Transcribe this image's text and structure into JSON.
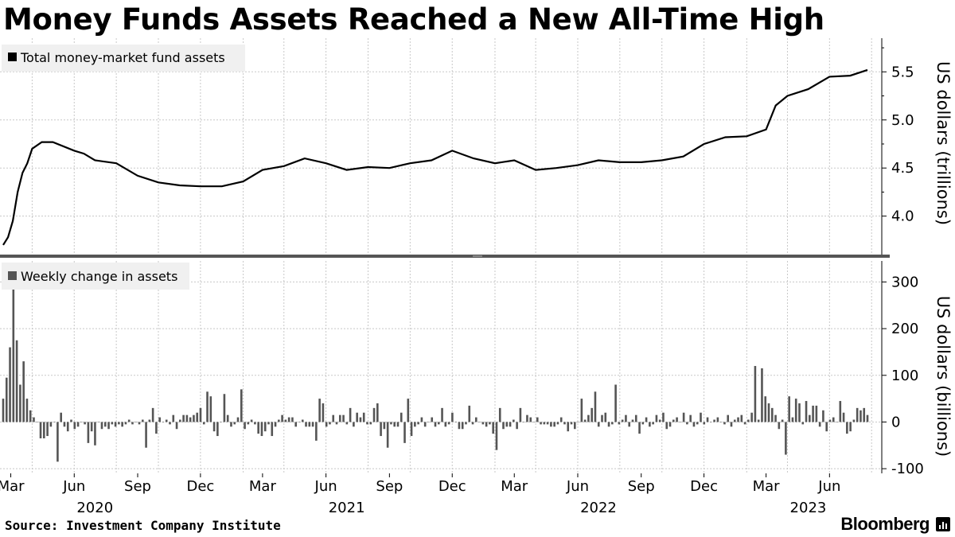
{
  "title": "Money Funds Assets Reached a New All-Time High",
  "source": "Source: Investment Company Institute",
  "brand": "Bloomberg",
  "colors": {
    "line": "#000000",
    "bars": "#555555",
    "grid": "#c8c8c8",
    "divider": "#555555"
  },
  "chart_data": [
    {
      "type": "line",
      "legend": "Total money-market fund assets",
      "ylabel": "US dollars (trillions)",
      "ylim": [
        3.6,
        5.85
      ],
      "yticks": [
        4.0,
        4.5,
        5.0,
        5.5
      ],
      "grid": true,
      "legend_position": "top-left",
      "x_months": [
        "2020-02",
        "2020-04",
        "2020-06",
        "2020-08",
        "2020-10",
        "2020-12",
        "2021-02",
        "2021-04",
        "2021-06",
        "2021-08",
        "2021-10",
        "2021-12",
        "2022-02",
        "2022-04",
        "2022-06",
        "2022-08",
        "2022-10",
        "2022-12",
        "2023-02",
        "2023-04",
        "2023-06",
        "2023-08"
      ],
      "series": [
        {
          "x": [
            "2020-02-19",
            "2020-02-26",
            "2020-03-04",
            "2020-03-11",
            "2020-03-18",
            "2020-03-25",
            "2020-04-01",
            "2020-04-15",
            "2020-05-01",
            "2020-06-01",
            "2020-06-15",
            "2020-07-01",
            "2020-08-01",
            "2020-09-01",
            "2020-10-01",
            "2020-11-01",
            "2020-12-01",
            "2021-01-01",
            "2021-02-01",
            "2021-03-01",
            "2021-04-01",
            "2021-05-01",
            "2021-06-01",
            "2021-07-01",
            "2021-08-01",
            "2021-09-01",
            "2021-10-01",
            "2021-11-01",
            "2021-12-01",
            "2022-01-01",
            "2022-02-01",
            "2022-03-01",
            "2022-04-01",
            "2022-05-01",
            "2022-06-01",
            "2022-07-01",
            "2022-08-01",
            "2022-09-01",
            "2022-10-01",
            "2022-11-01",
            "2022-12-01",
            "2023-01-01",
            "2023-02-01",
            "2023-03-01",
            "2023-03-15",
            "2023-04-01",
            "2023-05-01",
            "2023-06-01",
            "2023-07-01",
            "2023-07-26"
          ],
          "y": [
            3.7,
            3.78,
            3.95,
            4.25,
            4.45,
            4.55,
            4.7,
            4.77,
            4.77,
            4.68,
            4.65,
            4.58,
            4.55,
            4.42,
            4.35,
            4.32,
            4.31,
            4.31,
            4.36,
            4.48,
            4.52,
            4.6,
            4.55,
            4.48,
            4.51,
            4.5,
            4.55,
            4.58,
            4.68,
            4.6,
            4.55,
            4.58,
            4.48,
            4.5,
            4.53,
            4.58,
            4.56,
            4.56,
            4.58,
            4.62,
            4.75,
            4.82,
            4.83,
            4.9,
            5.15,
            5.25,
            5.32,
            5.45,
            5.46,
            5.52
          ]
        }
      ]
    },
    {
      "type": "bar",
      "legend": "Weekly change in assets",
      "ylabel": "US dollars (billions)",
      "ylim": [
        -110,
        345
      ],
      "yticks": [
        -100,
        0,
        100,
        200,
        300
      ],
      "grid": true,
      "legend_position": "top-left",
      "x_labels": [
        {
          "month": "Mar",
          "date": "2020-03-01"
        },
        {
          "month": "Jun",
          "date": "2020-06-01"
        },
        {
          "month": "Sep",
          "date": "2020-09-01"
        },
        {
          "month": "Dec",
          "date": "2020-12-01"
        },
        {
          "month": "Mar",
          "date": "2021-03-01"
        },
        {
          "month": "Jun",
          "date": "2021-06-01"
        },
        {
          "month": "Sep",
          "date": "2021-09-01"
        },
        {
          "month": "Dec",
          "date": "2021-12-01"
        },
        {
          "month": "Mar",
          "date": "2022-03-01"
        },
        {
          "month": "Jun",
          "date": "2022-06-01"
        },
        {
          "month": "Sep",
          "date": "2022-09-01"
        },
        {
          "month": "Dec",
          "date": "2022-12-01"
        },
        {
          "month": "Mar",
          "date": "2023-03-01"
        },
        {
          "month": "Jun",
          "date": "2023-06-01"
        }
      ],
      "year_labels": [
        {
          "year": "2020",
          "date": "2020-07-01"
        },
        {
          "year": "2021",
          "date": "2021-07-01"
        },
        {
          "year": "2022",
          "date": "2022-07-01"
        },
        {
          "year": "2023",
          "date": "2023-05-01"
        }
      ],
      "start_date": "2020-02-19",
      "end_date": "2023-07-26",
      "values": [
        50,
        95,
        160,
        285,
        175,
        80,
        130,
        50,
        25,
        10,
        0,
        -35,
        -35,
        -30,
        -10,
        0,
        -85,
        20,
        -10,
        -20,
        5,
        -15,
        -10,
        0,
        -5,
        -45,
        -20,
        -50,
        0,
        -15,
        -10,
        -15,
        -5,
        -10,
        -5,
        -10,
        -5,
        5,
        -5,
        0,
        -5,
        5,
        -55,
        5,
        30,
        -25,
        10,
        0,
        5,
        -5,
        15,
        -15,
        5,
        15,
        15,
        10,
        15,
        20,
        30,
        -5,
        65,
        55,
        -20,
        -30,
        0,
        60,
        15,
        -10,
        -5,
        10,
        70,
        -15,
        -5,
        5,
        -5,
        -25,
        -30,
        -20,
        -5,
        -30,
        -10,
        5,
        15,
        5,
        10,
        10,
        -10,
        0,
        5,
        -10,
        -10,
        -10,
        -40,
        50,
        40,
        -10,
        -5,
        15,
        -5,
        15,
        15,
        -5,
        30,
        -10,
        20,
        10,
        20,
        -5,
        -5,
        30,
        40,
        -30,
        -15,
        -55,
        -5,
        -10,
        -10,
        20,
        -45,
        50,
        -30,
        -10,
        -5,
        10,
        -10,
        0,
        10,
        -10,
        -5,
        30,
        -10,
        -5,
        20,
        0,
        -15,
        -15,
        -5,
        35,
        -5,
        10,
        0,
        -5,
        -10,
        -5,
        -25,
        -60,
        30,
        -15,
        -10,
        -10,
        5,
        -15,
        30,
        0,
        15,
        10,
        0,
        10,
        -5,
        -5,
        -5,
        -10,
        -10,
        -5,
        10,
        -5,
        -20,
        -5,
        -15,
        0,
        50,
        5,
        15,
        30,
        65,
        -10,
        15,
        20,
        -10,
        -5,
        80,
        -5,
        5,
        15,
        -10,
        5,
        15,
        -25,
        -5,
        10,
        -10,
        -5,
        15,
        5,
        20,
        -15,
        -10,
        5,
        10,
        0,
        20,
        -5,
        15,
        -10,
        -5,
        20,
        -5,
        10,
        0,
        5,
        10,
        0,
        -5,
        15,
        -10,
        5,
        10,
        15,
        -5,
        5,
        20,
        120,
        5,
        115,
        55,
        40,
        30,
        15,
        -15,
        5,
        -70,
        55,
        10,
        50,
        40,
        -5,
        45,
        15,
        35,
        35,
        -10,
        25,
        -20,
        5,
        10,
        0,
        45,
        20,
        -25,
        -20,
        5,
        30,
        25,
        30,
        15
      ],
      "series": [
        {
          "name": "Weekly change in assets"
        }
      ]
    }
  ]
}
